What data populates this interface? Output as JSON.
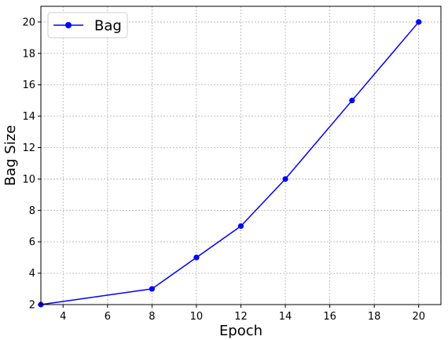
{
  "chart_data": {
    "type": "line",
    "title": "",
    "xlabel": "Epoch",
    "ylabel": "Bag Size",
    "xlim": [
      3,
      21
    ],
    "ylim": [
      2,
      21
    ],
    "xticks": [
      4,
      6,
      8,
      10,
      12,
      14,
      16,
      18,
      20
    ],
    "yticks": [
      2,
      4,
      6,
      8,
      10,
      12,
      14,
      16,
      18,
      20
    ],
    "grid": true,
    "legend_position": "upper-left",
    "series": [
      {
        "name": "Bag",
        "color": "#0000ff",
        "marker": "circle",
        "x": [
          3,
          8,
          10,
          12,
          14,
          17,
          20
        ],
        "y": [
          2,
          3,
          5,
          7,
          10,
          15,
          20
        ]
      }
    ]
  }
}
